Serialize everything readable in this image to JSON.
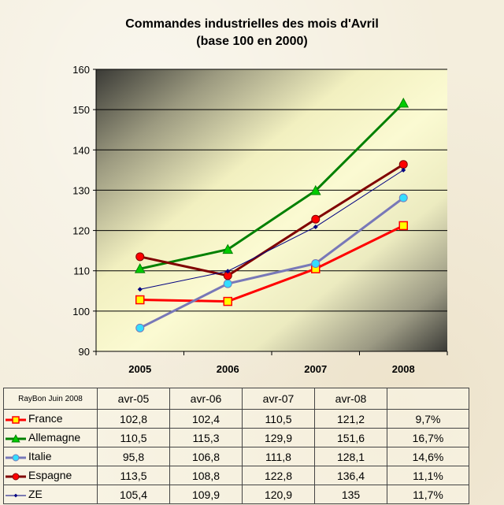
{
  "title_line1": "Commandes industrielles des mois d'Avril",
  "title_line2": "(base 100 en 2000)",
  "credit": "RayBon Juin 2008",
  "chart_data": {
    "type": "line",
    "title": "Commandes industrielles des mois d'Avril (base 100 en 2000)",
    "categories": [
      "2005",
      "2006",
      "2007",
      "2008"
    ],
    "ylim": [
      90,
      160
    ],
    "yticks": [
      90,
      100,
      110,
      120,
      130,
      140,
      150,
      160
    ],
    "grid": true,
    "series": [
      {
        "name": "France",
        "values": [
          102.8,
          102.4,
          110.5,
          121.2
        ],
        "growth": "9,7%",
        "color": "#ff0000",
        "marker": "square",
        "fill": "#ffff00",
        "width": 3
      },
      {
        "name": "Allemagne",
        "values": [
          110.5,
          115.3,
          129.9,
          151.6
        ],
        "growth": "16,7%",
        "color": "#008000",
        "marker": "triangle",
        "fill": "#00cc00",
        "width": 3
      },
      {
        "name": "Italie",
        "values": [
          95.8,
          106.8,
          111.8,
          128.1
        ],
        "growth": "14,6%",
        "color": "#7878b8",
        "marker": "circle",
        "fill": "#33ddff",
        "width": 3
      },
      {
        "name": "Espagne",
        "values": [
          113.5,
          108.8,
          122.8,
          136.4
        ],
        "growth": "11,1%",
        "color": "#800000",
        "marker": "circle",
        "fill": "#ff0000",
        "width": 3
      },
      {
        "name": "ZE",
        "values": [
          105.4,
          109.9,
          120.9,
          135
        ],
        "growth": "11,7%",
        "color": "#000080",
        "marker": "diamond",
        "fill": "#000080",
        "width": 1
      }
    ]
  },
  "table": {
    "headers": [
      "avr-05",
      "avr-06",
      "avr-07",
      "avr-08",
      ""
    ],
    "rows": [
      {
        "label": "France",
        "cells": [
          "102,8",
          "102,4",
          "110,5",
          "121,2",
          "9,7%"
        ]
      },
      {
        "label": "Allemagne",
        "cells": [
          "110,5",
          "115,3",
          "129,9",
          "151,6",
          "16,7%"
        ]
      },
      {
        "label": "Italie",
        "cells": [
          "95,8",
          "106,8",
          "111,8",
          "128,1",
          "14,6%"
        ]
      },
      {
        "label": "Espagne",
        "cells": [
          "113,5",
          "108,8",
          "122,8",
          "136,4",
          "11,1%"
        ]
      },
      {
        "label": "ZE",
        "cells": [
          "105,4",
          "109,9",
          "120,9",
          "135",
          "11,7%"
        ]
      }
    ]
  }
}
